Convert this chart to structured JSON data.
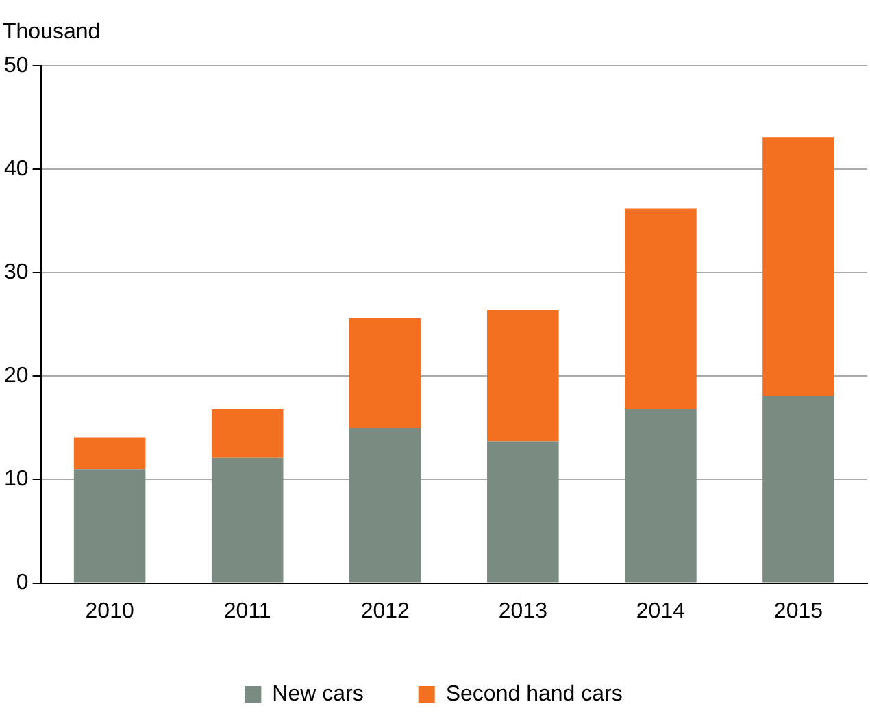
{
  "chart_data": {
    "type": "bar",
    "ylabel": "Thousand",
    "stacked": true,
    "categories": [
      "2010",
      "2011",
      "2012",
      "2013",
      "2014",
      "2015"
    ],
    "series": [
      {
        "name": "New cars",
        "color": "#7a8b81",
        "values": [
          11,
          12.1,
          15,
          13.7,
          16.8,
          18.1
        ]
      },
      {
        "name": "Second hand cars",
        "color": "#f37021",
        "values": [
          3.1,
          4.7,
          10.6,
          12.7,
          19.4,
          25
        ]
      }
    ],
    "ylim": [
      0,
      50
    ],
    "yticks": [
      0,
      10,
      20,
      30,
      40,
      50
    ],
    "grid": "y",
    "legend": "bottom"
  }
}
